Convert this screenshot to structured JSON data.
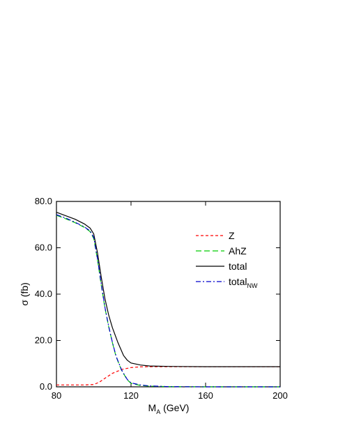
{
  "chart_data": {
    "type": "line",
    "xlabel": "M",
    "xlabel_sub": "A",
    "xlabel_unit": " (GeV)",
    "ylabel": "σ (fb)",
    "xlim": [
      80,
      200
    ],
    "ylim": [
      0,
      80
    ],
    "x_ticks": [
      80,
      120,
      160,
      200
    ],
    "x_tick_labels": [
      "80",
      "120",
      "160",
      "200"
    ],
    "y_ticks": [
      0,
      20,
      40,
      60,
      80
    ],
    "y_tick_labels": [
      "0.0",
      "20.0",
      "40.0",
      "60.0",
      "80.0"
    ],
    "grid": false,
    "legend_position": "upper-right",
    "series": [
      {
        "name": "Z",
        "color": "#ff0000",
        "dash": "dashed",
        "x": [
          80,
          90,
          95,
          100,
          103,
          106,
          110,
          115,
          120,
          125,
          130,
          140,
          160,
          180,
          200
        ],
        "y": [
          0.8,
          0.8,
          0.8,
          1.0,
          2.0,
          3.7,
          5.8,
          7.5,
          8.3,
          8.6,
          8.7,
          8.7,
          8.7,
          8.7,
          8.7
        ]
      },
      {
        "name": "AhZ",
        "color": "#00cc00",
        "dash": "long-dashed",
        "x": [
          80,
          85,
          90,
          95,
          98,
          100,
          102,
          104,
          106,
          108,
          110,
          112,
          115,
          118,
          120,
          125,
          130,
          140,
          160,
          200
        ],
        "y": [
          74.0,
          72.5,
          70.8,
          68.8,
          67.0,
          64.0,
          55.0,
          44.0,
          34.0,
          26.0,
          19.0,
          13.0,
          7.0,
          3.0,
          1.5,
          0.6,
          0.3,
          0.1,
          0.0,
          0.0
        ]
      },
      {
        "name": "total",
        "color": "#000000",
        "dash": "solid",
        "x": [
          80,
          85,
          90,
          95,
          98,
          100,
          102,
          104,
          106,
          108,
          110,
          113,
          116,
          118,
          120,
          125,
          130,
          140,
          160,
          200
        ],
        "y": [
          75.3,
          73.8,
          72.3,
          70.3,
          68.5,
          66.0,
          58.0,
          47.5,
          38.0,
          31.0,
          25.5,
          19.0,
          13.5,
          11.5,
          10.3,
          9.4,
          9.0,
          8.8,
          8.7,
          8.7
        ]
      },
      {
        "name": "total",
        "name_sub": "NW",
        "color": "#0000cc",
        "dash": "dash-dot",
        "x": [
          80,
          85,
          90,
          95,
          98,
          100,
          102,
          104,
          106,
          108,
          110,
          112,
          115,
          118,
          120,
          125,
          130,
          140,
          160,
          200
        ],
        "y": [
          74.3,
          72.8,
          71.0,
          69.0,
          67.3,
          64.5,
          55.5,
          44.5,
          34.3,
          26.2,
          19.2,
          13.2,
          7.2,
          3.2,
          1.7,
          0.8,
          0.4,
          0.1,
          0.0,
          0.0
        ]
      }
    ]
  }
}
